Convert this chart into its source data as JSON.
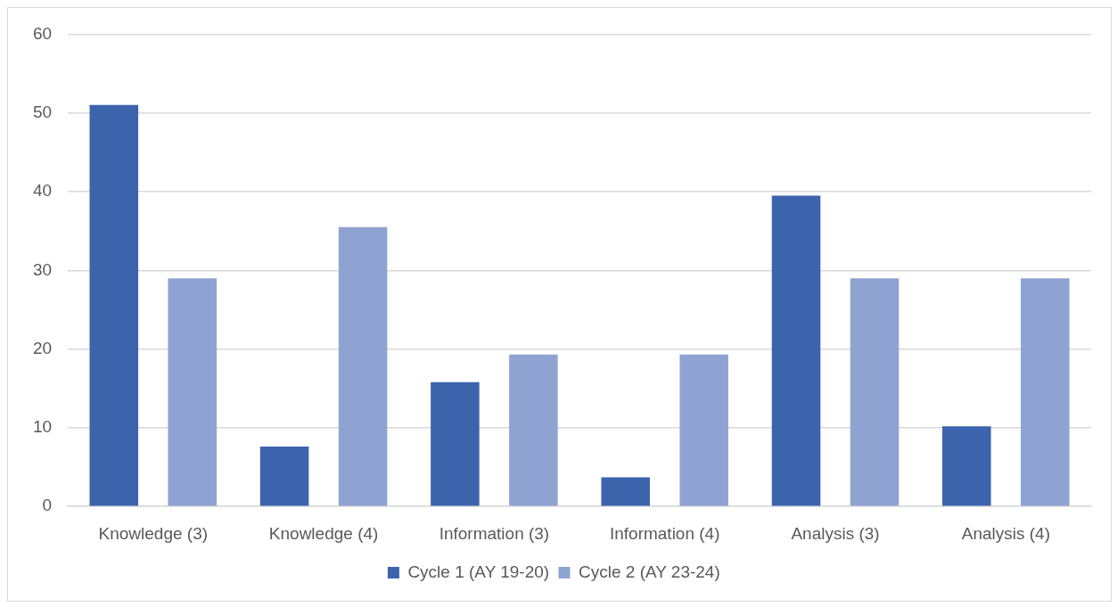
{
  "chart_data": {
    "type": "bar",
    "categories": [
      "Knowledge (3)",
      "Knowledge (4)",
      "Information (3)",
      "Information (4)",
      "Analysis (3)",
      "Analysis (4)"
    ],
    "series": [
      {
        "name": "Cycle 1 (AY 19-20)",
        "color": "#3c64ac",
        "values": [
          51,
          7.6,
          15.8,
          3.7,
          39.5,
          10.2
        ]
      },
      {
        "name": "Cycle 2 (AY 23-24)",
        "color": "#8fa3d3",
        "values": [
          29,
          35.5,
          19.3,
          19.3,
          29,
          29
        ]
      }
    ],
    "ylim": [
      0,
      60
    ],
    "yticks": [
      0,
      10,
      20,
      30,
      40,
      50,
      60
    ],
    "grid": "y",
    "legend": "bottom"
  }
}
